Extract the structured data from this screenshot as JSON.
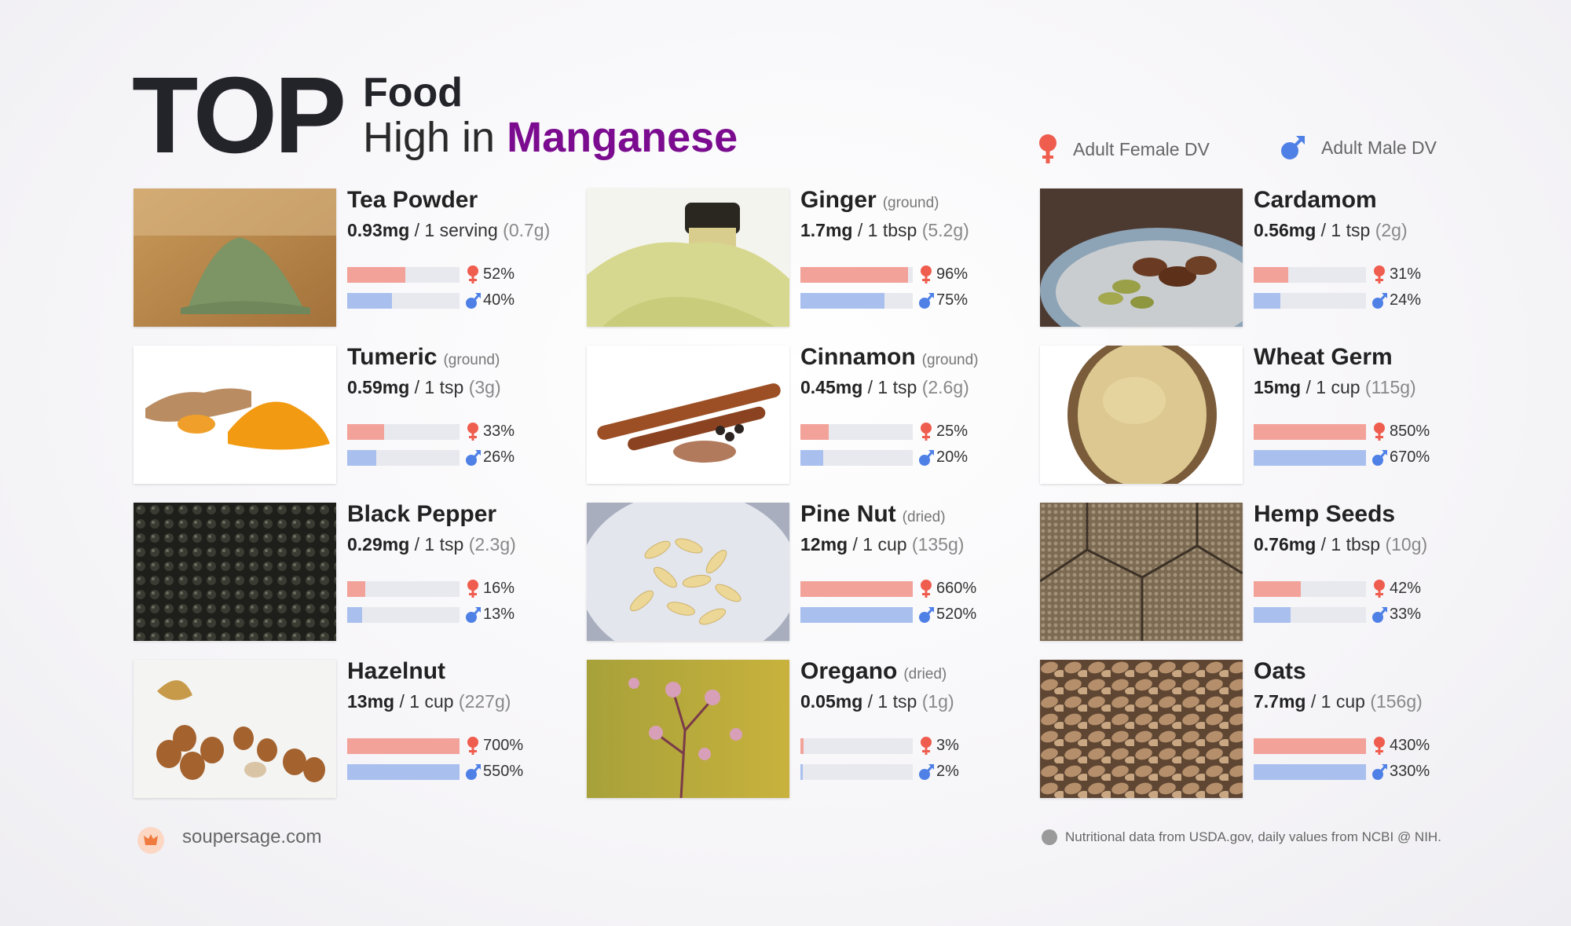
{
  "header": {
    "top": "TOP",
    "food": "Food",
    "high_in": "High in",
    "nutrient": "Manganese",
    "accent_color": "#7b0b8f"
  },
  "legend": {
    "female_label": "Adult Female DV",
    "male_label": "Adult Male DV",
    "female_icon": "female-symbol-icon",
    "male_icon": "male-symbol-icon",
    "female_color": "#ef5d4f",
    "male_color": "#4e80e6"
  },
  "foods": [
    {
      "name": "Tea Powder",
      "form": "",
      "mg": "0.93mg",
      "serving": "/ 1 serving",
      "weight": "(0.7g)",
      "female_pct": 52,
      "male_pct": 40,
      "female_label": "52%",
      "male_label": "40%",
      "image": "tea-powder-photo"
    },
    {
      "name": "Ginger",
      "form": "(ground)",
      "mg": "1.7mg",
      "serving": "/ 1 tbsp",
      "weight": "(5.2g)",
      "female_pct": 96,
      "male_pct": 75,
      "female_label": "96%",
      "male_label": "75%",
      "image": "ginger-photo"
    },
    {
      "name": "Cardamom",
      "form": "",
      "mg": "0.56mg",
      "serving": "/ 1 tsp",
      "weight": "(2g)",
      "female_pct": 31,
      "male_pct": 24,
      "female_label": "31%",
      "male_label": "24%",
      "image": "cardamom-photo"
    },
    {
      "name": "Tumeric",
      "form": "(ground)",
      "mg": "0.59mg",
      "serving": "/ 1 tsp",
      "weight": "(3g)",
      "female_pct": 33,
      "male_pct": 26,
      "female_label": "33%",
      "male_label": "26%",
      "image": "tumeric-photo"
    },
    {
      "name": "Cinnamon",
      "form": "(ground)",
      "mg": "0.45mg",
      "serving": "/ 1 tsp",
      "weight": "(2.6g)",
      "female_pct": 25,
      "male_pct": 20,
      "female_label": "25%",
      "male_label": "20%",
      "image": "cinnamon-photo"
    },
    {
      "name": "Wheat Germ",
      "form": "",
      "mg": "15mg",
      "serving": "/ 1 cup",
      "weight": "(115g)",
      "female_pct": 850,
      "male_pct": 670,
      "female_label": "850%",
      "male_label": "670%",
      "image": "wheat-germ-photo"
    },
    {
      "name": "Black Pepper",
      "form": "",
      "mg": "0.29mg",
      "serving": "/ 1 tsp",
      "weight": "(2.3g)",
      "female_pct": 16,
      "male_pct": 13,
      "female_label": "16%",
      "male_label": "13%",
      "image": "black-pepper-photo"
    },
    {
      "name": "Pine Nut",
      "form": "(dried)",
      "mg": "12mg",
      "serving": "/ 1 cup",
      "weight": "(135g)",
      "female_pct": 660,
      "male_pct": 520,
      "female_label": "660%",
      "male_label": "520%",
      "image": "pine-nut-photo"
    },
    {
      "name": "Hemp Seeds",
      "form": "",
      "mg": "0.76mg",
      "serving": "/ 1 tbsp",
      "weight": "(10g)",
      "female_pct": 42,
      "male_pct": 33,
      "female_label": "42%",
      "male_label": "33%",
      "image": "hemp-seeds-photo"
    },
    {
      "name": "Hazelnut",
      "form": "",
      "mg": "13mg",
      "serving": "/ 1 cup",
      "weight": "(227g)",
      "female_pct": 700,
      "male_pct": 550,
      "female_label": "700%",
      "male_label": "550%",
      "image": "hazelnut-photo"
    },
    {
      "name": "Oregano",
      "form": "(dried)",
      "mg": "0.05mg",
      "serving": "/ 1 tsp",
      "weight": "(1g)",
      "female_pct": 3,
      "male_pct": 2,
      "female_label": "3%",
      "male_label": "2%",
      "image": "oregano-photo"
    },
    {
      "name": "Oats",
      "form": "",
      "mg": "7.7mg",
      "serving": "/ 1 cup",
      "weight": "(156g)",
      "female_pct": 430,
      "male_pct": 330,
      "female_label": "430%",
      "male_label": "330%",
      "image": "oats-photo"
    }
  ],
  "footer": {
    "site": "soupersage.com",
    "logo_icon": "soupersage-logo-icon",
    "note": "Nutritional data from USDA.gov, daily values from NCBI @ NIH.",
    "note_icon": "info-dot-icon"
  }
}
